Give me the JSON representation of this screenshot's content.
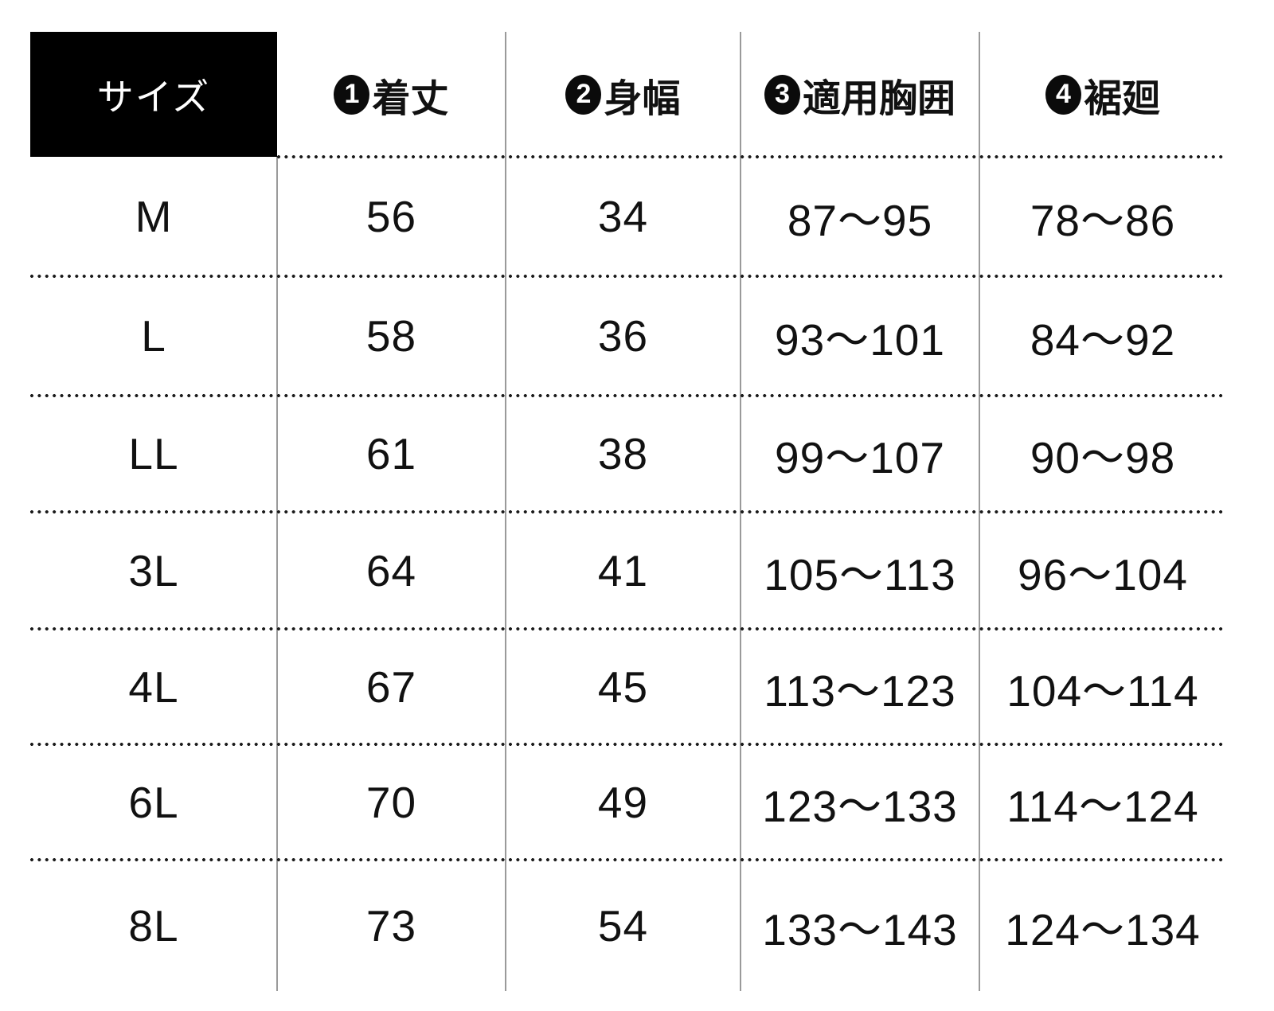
{
  "table": {
    "corner_label": "サイズ",
    "headers": [
      {
        "badge": "1",
        "label": "着丈"
      },
      {
        "badge": "2",
        "label": "身幅"
      },
      {
        "badge": "3",
        "label": "適用胸囲"
      },
      {
        "badge": "4",
        "label": "裾廻"
      }
    ],
    "rows": [
      {
        "size": "M",
        "values": [
          "56",
          "34",
          "87〜95",
          "78〜86"
        ]
      },
      {
        "size": "L",
        "values": [
          "58",
          "36",
          "93〜101",
          "84〜92"
        ]
      },
      {
        "size": "LL",
        "values": [
          "61",
          "38",
          "99〜107",
          "90〜98"
        ]
      },
      {
        "size": "3L",
        "values": [
          "64",
          "41",
          "105〜113",
          "96〜104"
        ]
      },
      {
        "size": "4L",
        "values": [
          "67",
          "45",
          "113〜123",
          "104〜114"
        ]
      },
      {
        "size": "6L",
        "values": [
          "70",
          "49",
          "123〜133",
          "114〜124"
        ]
      },
      {
        "size": "8L",
        "values": [
          "73",
          "54",
          "133〜143",
          "124〜134"
        ]
      }
    ],
    "colors": {
      "background": "#ffffff",
      "header_bg": "#000000",
      "header_text": "#ffffff",
      "body_text": "#111111",
      "column_divider": "#9a9a9a",
      "row_divider_dot": "#1b1b1b"
    }
  },
  "chart_data": {
    "type": "table",
    "columns": [
      "サイズ",
      "❶着丈",
      "❷身幅",
      "❸適用胸囲",
      "❹裾廻"
    ],
    "rows": [
      [
        "M",
        "56",
        "34",
        "87〜95",
        "78〜86"
      ],
      [
        "L",
        "58",
        "36",
        "93〜101",
        "84〜92"
      ],
      [
        "LL",
        "61",
        "38",
        "99〜107",
        "90〜98"
      ],
      [
        "3L",
        "64",
        "41",
        "105〜113",
        "96〜104"
      ],
      [
        "4L",
        "67",
        "45",
        "113〜123",
        "104〜114"
      ],
      [
        "6L",
        "70",
        "49",
        "123〜133",
        "114〜124"
      ],
      [
        "8L",
        "73",
        "54",
        "133〜143",
        "124〜134"
      ]
    ],
    "layout": {
      "grid": "dotted horizontal row dividers, gray vertical column dividers, no outer border",
      "header_style": "black filled corner cell; numbered black circle badges before column labels"
    }
  }
}
